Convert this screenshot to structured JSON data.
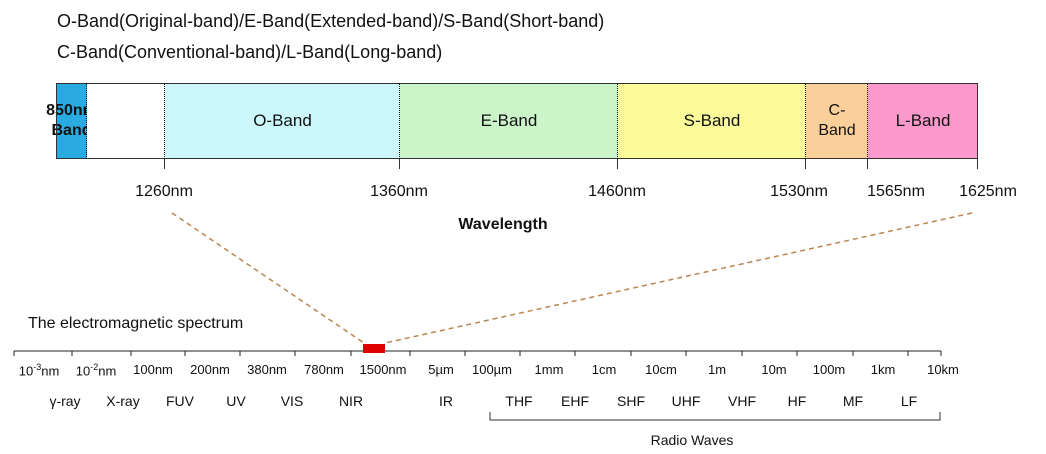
{
  "header": {
    "line1": "O-Band(Original-band)/E-Band(Extended-band)/S-Band(Short-band)",
    "line2": "C-Band(Conventional-band)/L-Band(Long-band)"
  },
  "bands": [
    {
      "id": "850",
      "line1": "850nm",
      "line2": "Band",
      "color": "#29abe2"
    },
    {
      "id": "o",
      "label": "O-Band",
      "color": "#ccf8fb"
    },
    {
      "id": "e",
      "label": "E-Band",
      "color": "#cbf4c9"
    },
    {
      "id": "s",
      "label": "S-Band",
      "color": "#fbfb99"
    },
    {
      "id": "c",
      "line1": "C-",
      "line2": "Band",
      "color": "#fbcf99"
    },
    {
      "id": "l",
      "label": "L-Band",
      "color": "#fb99cc"
    }
  ],
  "wavelength_ticks": [
    "1260nm",
    "1360nm",
    "1460nm",
    "1530nm",
    "1565nm",
    "1625nm"
  ],
  "axis_label": "Wavelength",
  "spectrum": {
    "title": "The electromagnetic spectrum",
    "scale": [
      {
        "base": "10",
        "exp": "-3",
        "unit": "nm"
      },
      {
        "base": "10",
        "exp": "-2",
        "unit": "nm"
      },
      {
        "text": "100nm"
      },
      {
        "text": "200nm"
      },
      {
        "text": "380nm"
      },
      {
        "text": "780nm"
      },
      {
        "text": "1500nm"
      },
      {
        "text": "5µm"
      },
      {
        "text": "100µm"
      },
      {
        "text": "1mm"
      },
      {
        "text": "1cm"
      },
      {
        "text": "10cm"
      },
      {
        "text": "1m"
      },
      {
        "text": "10m"
      },
      {
        "text": "100m"
      },
      {
        "text": "1km"
      },
      {
        "text": "10km"
      }
    ],
    "regions": [
      "γ-ray",
      "X-ray",
      "FUV",
      "UV",
      "VIS",
      "NIR",
      "IR",
      "THF",
      "EHF",
      "SHF",
      "UHF",
      "VHF",
      "HF",
      "MF",
      "LF"
    ],
    "radio_label": "Radio Waves",
    "highlight_color": "#e00000",
    "zoom_line_color": "#b8864f"
  }
}
